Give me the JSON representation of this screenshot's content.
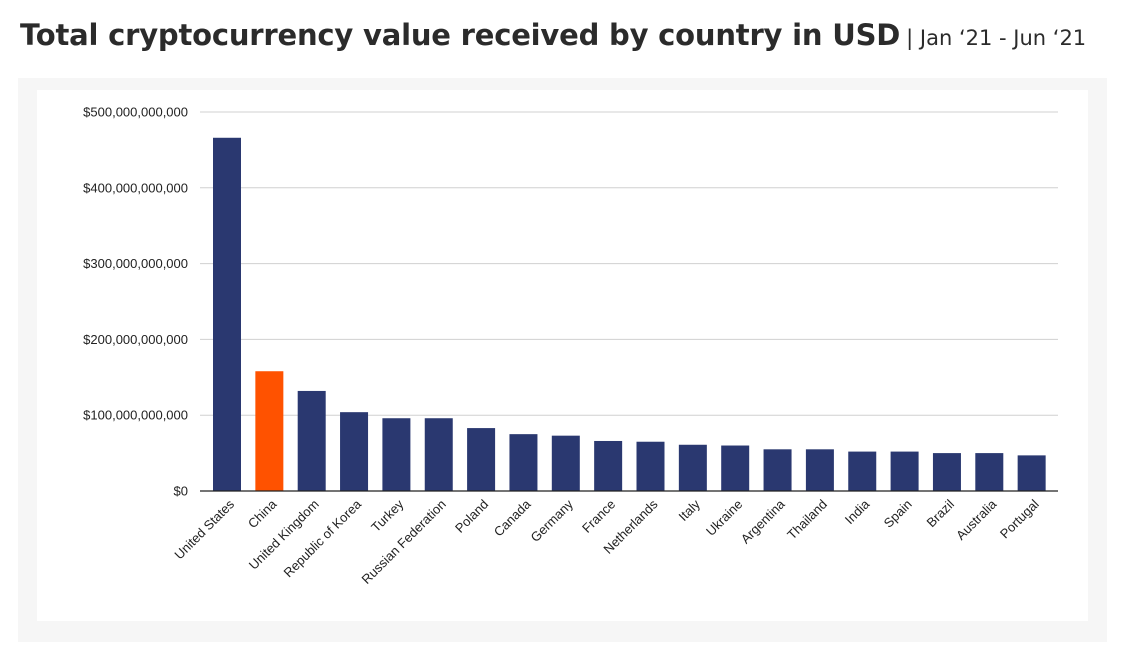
{
  "header": {
    "title": "Total cryptocurrency value received by country in USD",
    "subtitle": "| Jan ‘21 - Jun ‘21"
  },
  "colors": {
    "bar": "#2a3870",
    "highlight": "#ff5200",
    "grid": "#d0d0d0",
    "axis": "#222222",
    "panel": "#f6f6f6"
  },
  "chart_data": {
    "type": "bar",
    "title": "Total cryptocurrency value received by country in USD",
    "subtitle": "| Jan ‘21 - Jun ‘21",
    "xlabel": "",
    "ylabel": "",
    "ylim": [
      0,
      500000000000
    ],
    "grid": true,
    "highlight_category": "China",
    "y_ticks": [
      0,
      100000000000,
      200000000000,
      300000000000,
      400000000000,
      500000000000
    ],
    "y_tick_labels": [
      "$0",
      "$100,000,000,000",
      "$200,000,000,000",
      "$300,000,000,000",
      "$400,000,000,000",
      "$500,000,000,000"
    ],
    "categories": [
      "United States",
      "China",
      "United Kingdom",
      "Republic of Korea",
      "Turkey",
      "Russian Federation",
      "Poland",
      "Canada",
      "Germany",
      "France",
      "Netherlands",
      "Italy",
      "Ukraine",
      "Argentina",
      "Thailand",
      "India",
      "Spain",
      "Brazil",
      "Australia",
      "Portugal"
    ],
    "values": [
      466000000000,
      158000000000,
      132000000000,
      104000000000,
      96000000000,
      96000000000,
      83000000000,
      75000000000,
      73000000000,
      66000000000,
      65000000000,
      61000000000,
      60000000000,
      55000000000,
      55000000000,
      52000000000,
      52000000000,
      50000000000,
      50000000000,
      47000000000
    ]
  }
}
